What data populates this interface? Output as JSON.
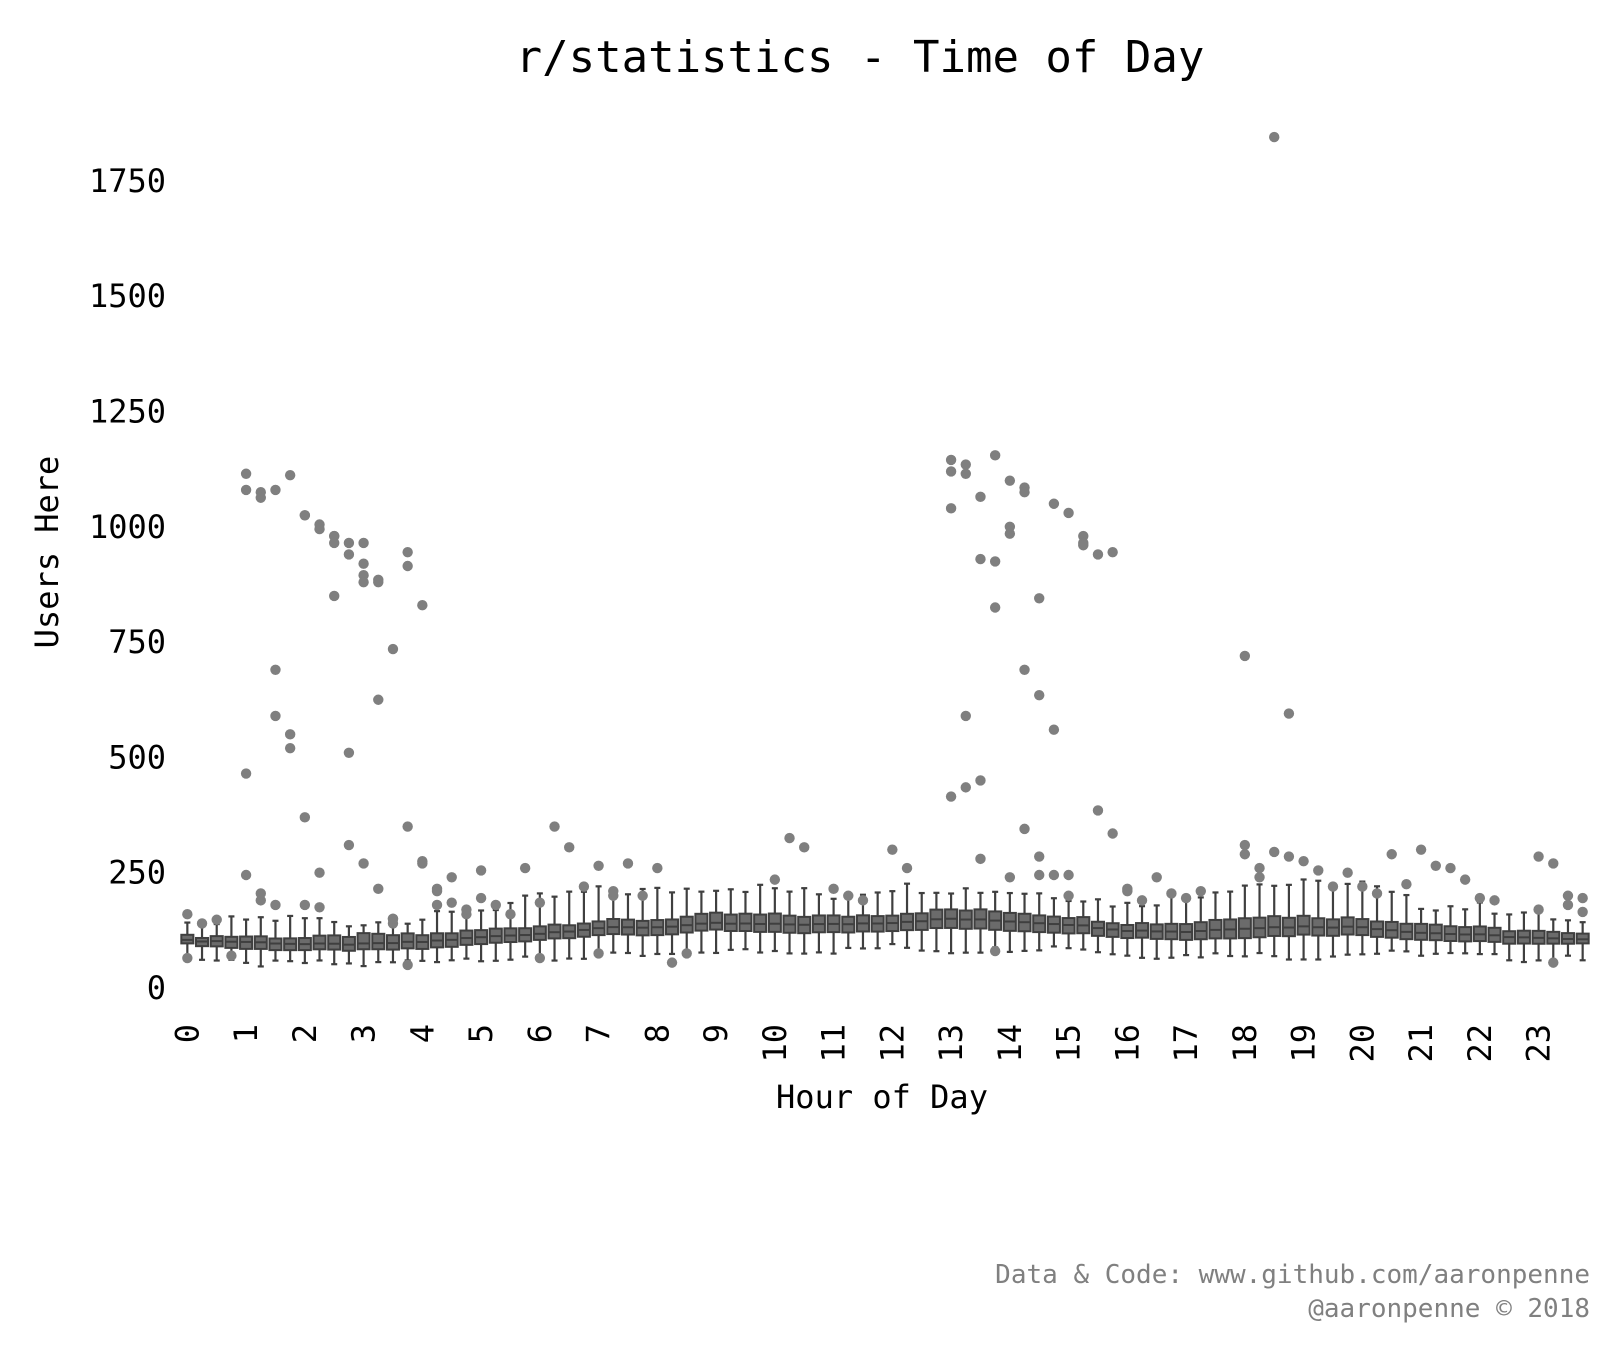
{
  "chart_data": {
    "type": "box",
    "title": "r/statistics - Time of Day",
    "xlabel": "Hour of Day",
    "ylabel": "Users Here",
    "ylim": [
      -30,
      1870
    ],
    "yticks": [
      0,
      250,
      500,
      750,
      1000,
      1250,
      1500,
      1750
    ],
    "xticks": [
      "0",
      "1",
      "2",
      "3",
      "4",
      "5",
      "6",
      "7",
      "8",
      "9",
      "10",
      "11",
      "12",
      "13",
      "14",
      "15",
      "16",
      "17",
      "18",
      "19",
      "20",
      "21",
      "22",
      "23"
    ],
    "boxes_per_hour": 4,
    "grid": false,
    "legend": "none",
    "colors": {
      "box": "#6b6b6b",
      "edge": "#3f3f3f",
      "outlier": "#7f7f7f"
    },
    "hourly_boxes": [
      {
        "hour": 0,
        "q1": 95,
        "median": 103,
        "q3": 112,
        "whisker_low": 68,
        "whisker_high": 130,
        "outliers": [
          160,
          140,
          148,
          70,
          65
        ]
      },
      {
        "hour": 1,
        "q1": 85,
        "median": 100,
        "q3": 112,
        "whisker_low": 50,
        "whisker_high": 150,
        "outliers": [
          1115,
          1075,
          690,
          520,
          245,
          190,
          180,
          1112,
          1080,
          1063,
          590,
          550,
          465,
          205,
          1080
        ]
      },
      {
        "hour": 2,
        "q1": 82,
        "median": 95,
        "q3": 108,
        "whisker_low": 55,
        "whisker_high": 150,
        "outliers": [
          1025,
          1005,
          850,
          510,
          370,
          250,
          980,
          940,
          1025,
          995,
          965,
          310,
          180,
          175,
          980,
          965
        ]
      },
      {
        "hour": 3,
        "q1": 82,
        "median": 95,
        "q3": 115,
        "whisker_low": 50,
        "whisker_high": 140,
        "outliers": [
          965,
          885,
          735,
          350,
          270,
          215,
          150,
          50,
          920,
          625,
          140,
          915,
          895,
          880,
          150,
          945,
          880
        ]
      },
      {
        "hour": 4,
        "q1": 85,
        "median": 100,
        "q3": 115,
        "whisker_low": 60,
        "whisker_high": 150,
        "outliers": [
          830,
          215,
          240,
          160,
          275,
          210,
          185,
          170,
          270,
          180
        ]
      },
      {
        "hour": 5,
        "q1": 95,
        "median": 110,
        "q3": 125,
        "whisker_low": 65,
        "whisker_high": 170,
        "outliers": [
          195,
          180,
          160,
          260,
          255
        ]
      },
      {
        "hour": 6,
        "q1": 105,
        "median": 118,
        "q3": 135,
        "whisker_low": 60,
        "whisker_high": 195,
        "outliers": [
          185,
          350,
          305,
          220,
          65
        ]
      },
      {
        "hour": 7,
        "q1": 115,
        "median": 130,
        "q3": 145,
        "whisker_low": 70,
        "whisker_high": 210,
        "outliers": [
          265,
          200,
          270,
          200,
          75,
          210
        ]
      },
      {
        "hour": 8,
        "q1": 115,
        "median": 132,
        "q3": 148,
        "whisker_low": 70,
        "whisker_high": 210,
        "outliers": [
          260,
          55,
          75
        ]
      },
      {
        "hour": 9,
        "q1": 125,
        "median": 140,
        "q3": 160,
        "whisker_low": 80,
        "whisker_high": 220,
        "outliers": []
      },
      {
        "hour": 10,
        "q1": 120,
        "median": 138,
        "q3": 158,
        "whisker_low": 80,
        "whisker_high": 215,
        "outliers": [
          235,
          325,
          305
        ]
      },
      {
        "hour": 11,
        "q1": 120,
        "median": 138,
        "q3": 155,
        "whisker_low": 80,
        "whisker_high": 200,
        "outliers": [
          215,
          200,
          190
        ]
      },
      {
        "hour": 12,
        "q1": 125,
        "median": 142,
        "q3": 160,
        "whisker_low": 90,
        "whisker_high": 220,
        "outliers": [
          300,
          260
        ]
      },
      {
        "hour": 13,
        "q1": 130,
        "median": 150,
        "q3": 170,
        "whisker_low": 80,
        "whisker_high": 215,
        "outliers": [
          1145,
          590,
          450,
          1155,
          1040,
          435,
          280,
          80,
          1120,
          1115,
          1065,
          825,
          415,
          1135,
          930,
          925
        ]
      },
      {
        "hour": 14,
        "q1": 125,
        "median": 145,
        "q3": 165,
        "whisker_low": 85,
        "whisker_high": 210,
        "outliers": [
          1100,
          1085,
          845,
          560,
          985,
          690,
          245,
          1050,
          1000,
          345,
          285,
          245,
          240,
          1075,
          635
        ]
      },
      {
        "hour": 15,
        "q1": 120,
        "median": 138,
        "q3": 155,
        "whisker_low": 90,
        "whisker_high": 200,
        "outliers": [
          1030,
          980,
          385,
          945,
          200,
          965,
          940,
          335,
          245,
          960
        ]
      },
      {
        "hour": 16,
        "q1": 110,
        "median": 125,
        "q3": 140,
        "whisker_low": 70,
        "whisker_high": 180,
        "outliers": [
          215,
          190,
          240,
          205,
          210
        ]
      },
      {
        "hour": 17,
        "q1": 105,
        "median": 122,
        "q3": 140,
        "whisker_low": 70,
        "whisker_high": 200,
        "outliers": [
          195,
          210
        ]
      },
      {
        "hour": 18,
        "q1": 110,
        "median": 130,
        "q3": 155,
        "whisker_low": 75,
        "whisker_high": 225,
        "outliers": [
          290,
          260,
          295,
          285,
          720,
          240,
          1845,
          595,
          310
        ]
      },
      {
        "hour": 19,
        "q1": 115,
        "median": 133,
        "q3": 155,
        "whisker_low": 65,
        "whisker_high": 225,
        "outliers": [
          275,
          255,
          220,
          250
        ]
      },
      {
        "hour": 20,
        "q1": 115,
        "median": 132,
        "q3": 150,
        "whisker_low": 75,
        "whisker_high": 225,
        "outliers": [
          220,
          205,
          290,
          225
        ]
      },
      {
        "hour": 21,
        "q1": 105,
        "median": 120,
        "q3": 140,
        "whisker_low": 75,
        "whisker_high": 180,
        "outliers": [
          300,
          265,
          260,
          235
        ]
      },
      {
        "hour": 22,
        "q1": 100,
        "median": 115,
        "q3": 130,
        "whisker_low": 70,
        "whisker_high": 175,
        "outliers": [
          195,
          190
        ]
      },
      {
        "hour": 23,
        "q1": 95,
        "median": 108,
        "q3": 122,
        "whisker_low": 60,
        "whisker_high": 160,
        "outliers": [
          285,
          270,
          200,
          195,
          170,
          55,
          180,
          165
        ]
      }
    ]
  },
  "credit": {
    "line1": "Data & Code: www.github.com/aaronpenne",
    "line2": "@aaronpenne © 2018"
  }
}
